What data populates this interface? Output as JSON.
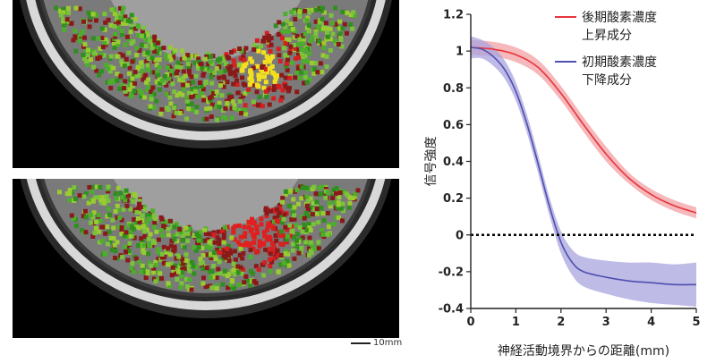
{
  "scale_bar": {
    "label": "10mm"
  },
  "colors": {
    "late_increase": "#e8343c",
    "late_band": "#f2a0a4",
    "early_decrease": "#4f4fb0",
    "early_band": "#a8a4de",
    "zero_line": "#000000"
  },
  "chart_data": {
    "type": "line",
    "title": "",
    "xlabel": "神経活動境界からの距離(mm)",
    "ylabel": "信号強度",
    "xlim": [
      0,
      5
    ],
    "ylim": [
      -0.4,
      1.2
    ],
    "x_ticks": [
      "0",
      "1",
      "2",
      "3",
      "4",
      "5"
    ],
    "y_ticks": [
      "-0.4",
      "-0.2",
      "0",
      "0.2",
      "0.4",
      "0.6",
      "0.8",
      "1",
      "1.2"
    ],
    "grid": false,
    "legend_position": "top-right",
    "reference_line": {
      "y": 0,
      "style": "dotted"
    },
    "series": [
      {
        "name_line1": "後期酸素濃度",
        "name_line2": "上昇成分",
        "color": "#e8343c",
        "x": [
          0,
          0.5,
          1.0,
          1.5,
          2.0,
          2.5,
          3.0,
          3.5,
          4.0,
          4.5,
          5.0
        ],
        "values": [
          1.02,
          1.01,
          0.98,
          0.91,
          0.77,
          0.6,
          0.44,
          0.31,
          0.22,
          0.16,
          0.12
        ],
        "band_halfwidth": [
          0.04,
          0.04,
          0.04,
          0.04,
          0.04,
          0.04,
          0.04,
          0.03,
          0.03,
          0.03,
          0.03
        ]
      },
      {
        "name_line1": "初期酸素濃度",
        "name_line2": "下降成分",
        "color": "#4f4fb0",
        "x": [
          0,
          0.25,
          0.5,
          0.75,
          1.0,
          1.25,
          1.5,
          1.75,
          2.0,
          2.25,
          2.5,
          3.0,
          3.5,
          4.0,
          4.5,
          5.0
        ],
        "values": [
          1.02,
          1.01,
          0.97,
          0.9,
          0.78,
          0.6,
          0.38,
          0.15,
          -0.04,
          -0.15,
          -0.2,
          -0.23,
          -0.25,
          -0.26,
          -0.27,
          -0.27
        ],
        "band_halfwidth": [
          0.06,
          0.05,
          0.05,
          0.05,
          0.05,
          0.05,
          0.05,
          0.05,
          0.06,
          0.07,
          0.08,
          0.09,
          0.1,
          0.11,
          0.11,
          0.12
        ]
      }
    ]
  }
}
